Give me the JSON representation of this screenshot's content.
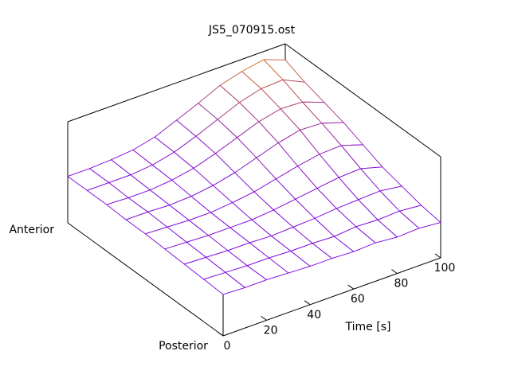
{
  "chart_data": {
    "type": "surface",
    "title": "JS5_070915.ost",
    "x_label": "Time [s]",
    "x": [
      0,
      10,
      20,
      30,
      40,
      50,
      60,
      70,
      80,
      90,
      100
    ],
    "xlim": [
      0,
      100
    ],
    "xticks": [
      0,
      20,
      40,
      60,
      80,
      100
    ],
    "y_end_labels": [
      "Posterior",
      "Anterior"
    ],
    "zlim": [
      0,
      10
    ],
    "z": [
      [
        4.1,
        4.0,
        4.0,
        3.9,
        3.8,
        3.8,
        3.7,
        3.8,
        3.6,
        3.7,
        3.5
      ],
      [
        4.2,
        4.1,
        4.0,
        4.0,
        3.9,
        3.9,
        3.8,
        4.0,
        3.9,
        4.0,
        3.8
      ],
      [
        4.3,
        4.2,
        4.1,
        4.1,
        4.0,
        4.1,
        4.2,
        4.4,
        4.5,
        4.6,
        4.3
      ],
      [
        4.4,
        4.3,
        4.2,
        4.2,
        4.2,
        4.4,
        4.7,
        5.0,
        5.3,
        5.4,
        4.8
      ],
      [
        4.5,
        4.4,
        4.3,
        4.3,
        4.5,
        4.8,
        5.3,
        5.8,
        6.2,
        6.3,
        5.6
      ],
      [
        4.5,
        4.5,
        4.4,
        4.5,
        4.8,
        5.3,
        6.0,
        6.7,
        7.2,
        7.1,
        6.4
      ],
      [
        4.6,
        4.5,
        4.5,
        4.7,
        5.1,
        5.8,
        6.6,
        7.4,
        7.9,
        7.8,
        7.0
      ],
      [
        4.6,
        4.6,
        4.6,
        4.8,
        5.3,
        6.1,
        7.0,
        7.9,
        8.5,
        8.6,
        7.6
      ],
      [
        4.6,
        4.6,
        4.7,
        4.9,
        5.4,
        6.3,
        7.2,
        8.2,
        8.8,
        9.2,
        8.4
      ]
    ],
    "colors": {
      "low": "#7a00e0",
      "high": "#e07000"
    }
  }
}
